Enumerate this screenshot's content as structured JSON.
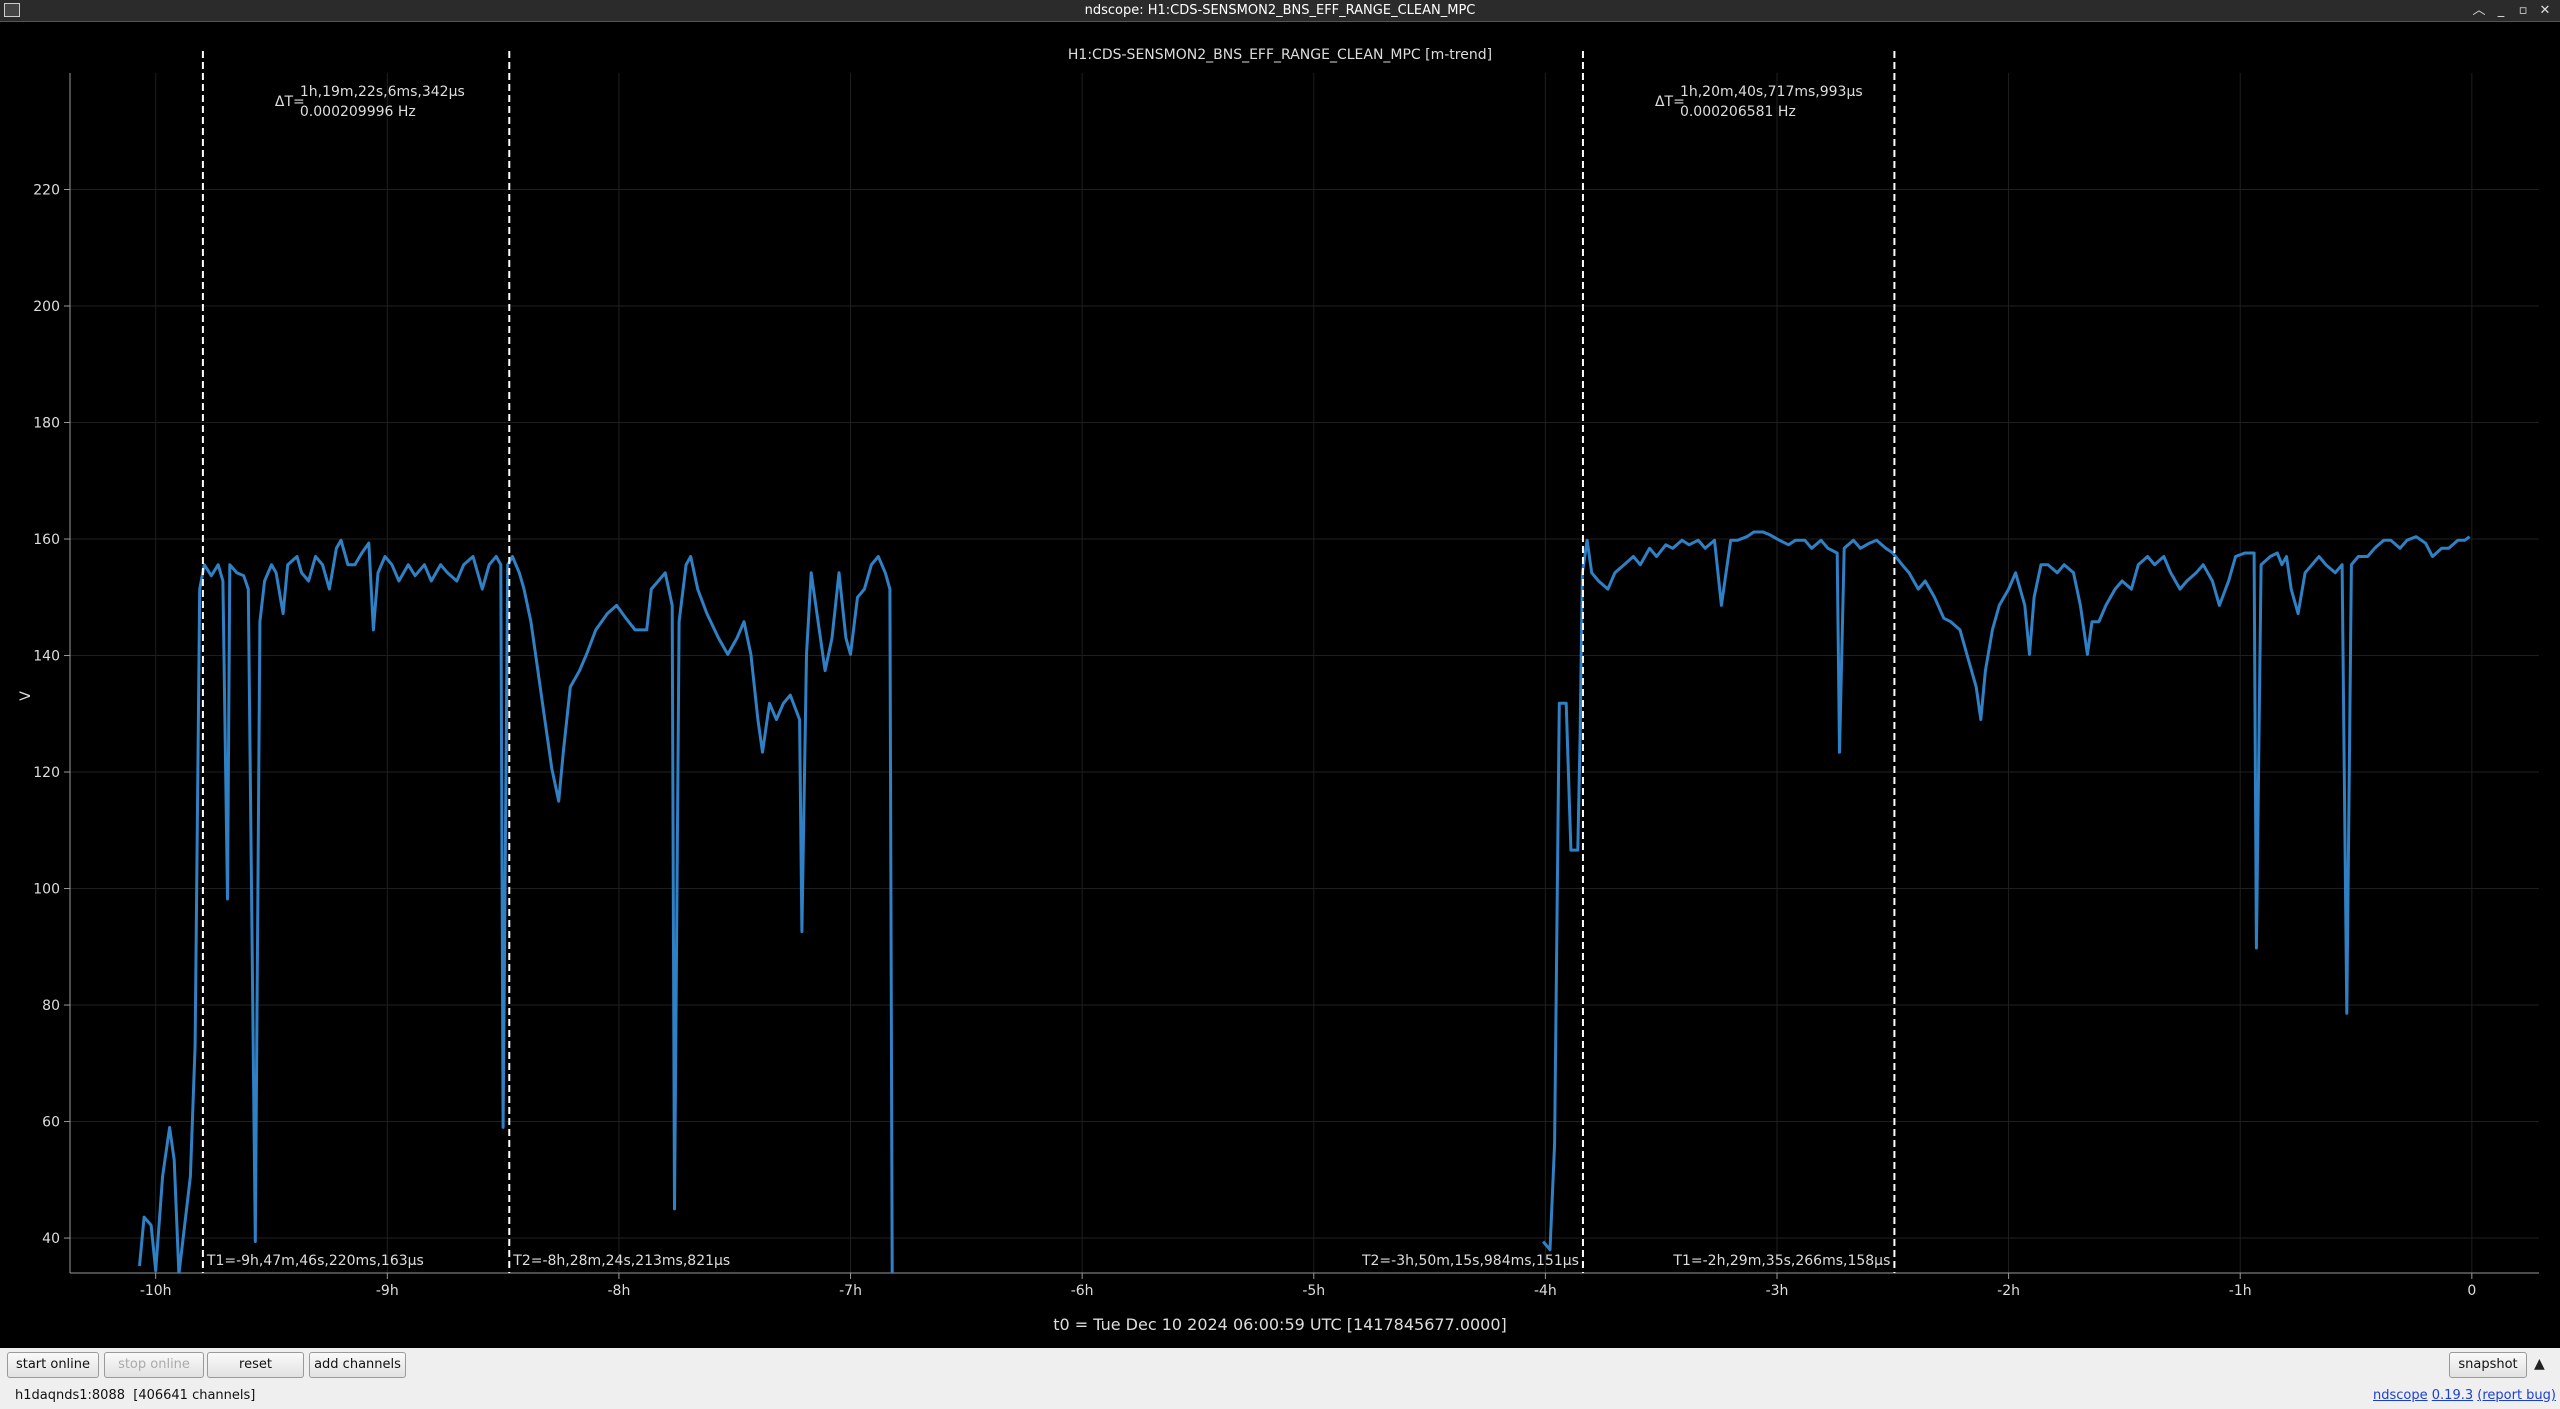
{
  "window": {
    "title": "ndscope: H1:CDS-SENSMON2_BNS_EFF_RANGE_CLEAN_MPC"
  },
  "chart_data": {
    "type": "line",
    "title": "H1:CDS-SENSMON2_BNS_EFF_RANGE_CLEAN_MPC [m-trend]",
    "y_label": "V",
    "x_caption": "t0 = Tue Dec 10 2024 06:00:59 UTC [1417845677.0000]",
    "color": "#2f80c4",
    "grid": true,
    "xlim": [
      -10.37,
      0.29
    ],
    "ylim": [
      34,
      240
    ],
    "xticks": [
      {
        "value": -10,
        "label": "-10h"
      },
      {
        "value": -9,
        "label": "-9h"
      },
      {
        "value": -8,
        "label": "-8h"
      },
      {
        "value": -7,
        "label": "-7h"
      },
      {
        "value": -6,
        "label": "-6h"
      },
      {
        "value": -5,
        "label": "-5h"
      },
      {
        "value": -4,
        "label": "-4h"
      },
      {
        "value": -3,
        "label": "-3h"
      },
      {
        "value": -2,
        "label": "-2h"
      },
      {
        "value": -1,
        "label": "-1h"
      },
      0
    ],
    "yticks": [
      40,
      60,
      80,
      100,
      120,
      140,
      160,
      180,
      200,
      220
    ],
    "x": [
      -10.07,
      -10.05,
      -10.02,
      -10.0,
      -9.97,
      -9.94,
      -9.92,
      -9.9,
      -9.85,
      -9.83,
      -9.81,
      -9.79,
      -9.76,
      -9.73,
      -9.71,
      -9.69,
      -9.68,
      -9.65,
      -9.62,
      -9.6,
      -9.57,
      -9.55,
      -9.53,
      -9.5,
      -9.48,
      -9.45,
      -9.43,
      -9.39,
      -9.37,
      -9.34,
      -9.31,
      -9.28,
      -9.25,
      -9.22,
      -9.2,
      -9.17,
      -9.14,
      -9.11,
      -9.08,
      -9.06,
      -9.04,
      -9.01,
      -8.98,
      -8.95,
      -8.91,
      -8.88,
      -8.84,
      -8.81,
      -8.77,
      -8.74,
      -8.7,
      -8.67,
      -8.63,
      -8.59,
      -8.56,
      -8.53,
      -8.51,
      -8.5,
      -8.48,
      -8.46,
      -8.43,
      -8.41,
      -8.38,
      -8.35,
      -8.32,
      -8.29,
      -8.26,
      -8.24,
      -8.21,
      -8.17,
      -8.14,
      -8.1,
      -8.05,
      -8.01,
      -7.97,
      -7.93,
      -7.88,
      -7.86,
      -7.83,
      -7.8,
      -7.77,
      -7.76,
      -7.74,
      -7.71,
      -7.69,
      -7.66,
      -7.62,
      -7.57,
      -7.53,
      -7.49,
      -7.46,
      -7.43,
      -7.4,
      -7.38,
      -7.35,
      -7.32,
      -7.29,
      -7.26,
      -7.22,
      -7.21,
      -7.19,
      -7.17,
      -7.14,
      -7.11,
      -7.08,
      -7.05,
      -7.02,
      -7.0,
      -6.97,
      -6.94,
      -6.91,
      -6.88,
      -6.85,
      -6.83,
      -6.82,
      -5.4,
      -4.01,
      -3.98,
      -3.96,
      -3.94,
      -3.91,
      -3.89,
      -3.86,
      -3.85,
      -3.84,
      -3.82,
      -3.8,
      -3.77,
      -3.73,
      -3.7,
      -3.66,
      -3.62,
      -3.59,
      -3.55,
      -3.52,
      -3.48,
      -3.45,
      -3.41,
      -3.38,
      -3.34,
      -3.31,
      -3.27,
      -3.24,
      -3.2,
      -3.17,
      -3.13,
      -3.1,
      -3.06,
      -3.03,
      -2.99,
      -2.95,
      -2.92,
      -2.88,
      -2.85,
      -2.81,
      -2.78,
      -2.74,
      -2.73,
      -2.71,
      -2.67,
      -2.64,
      -2.6,
      -2.57,
      -2.53,
      -2.5,
      -2.46,
      -2.43,
      -2.39,
      -2.36,
      -2.32,
      -2.28,
      -2.25,
      -2.21,
      -2.18,
      -2.14,
      -2.12,
      -2.1,
      -2.07,
      -2.04,
      -2.0,
      -1.97,
      -1.93,
      -1.91,
      -1.89,
      -1.86,
      -1.83,
      -1.79,
      -1.76,
      -1.72,
      -1.69,
      -1.66,
      -1.64,
      -1.61,
      -1.58,
      -1.54,
      -1.51,
      -1.47,
      -1.44,
      -1.4,
      -1.37,
      -1.33,
      -1.3,
      -1.26,
      -1.23,
      -1.19,
      -1.16,
      -1.12,
      -1.09,
      -1.05,
      -1.02,
      -0.98,
      -0.94,
      -0.93,
      -0.91,
      -0.87,
      -0.84,
      -0.82,
      -0.8,
      -0.78,
      -0.75,
      -0.72,
      -0.69,
      -0.66,
      -0.63,
      -0.59,
      -0.56,
      -0.54,
      -0.52,
      -0.49,
      -0.45,
      -0.42,
      -0.38,
      -0.35,
      -0.31,
      -0.28,
      -0.24,
      -0.2,
      -0.17,
      -0.13,
      -0.1,
      -0.06,
      -0.03,
      -0.01
    ],
    "values": [
      35.2,
      43.6,
      42.2,
      34.4,
      50.6,
      59.0,
      53.4,
      33.8,
      50.6,
      73.0,
      151.4,
      155.6,
      153.7,
      155.6,
      152.8,
      98.2,
      155.6,
      154.2,
      153.7,
      151.4,
      39.4,
      145.8,
      152.8,
      155.6,
      154.2,
      147.2,
      155.6,
      157.0,
      154.2,
      152.8,
      157.0,
      155.6,
      151.4,
      158.4,
      159.8,
      155.6,
      155.6,
      157.6,
      159.3,
      144.4,
      154.2,
      157.0,
      155.6,
      152.8,
      155.6,
      153.7,
      155.6,
      152.8,
      155.6,
      154.2,
      152.8,
      155.6,
      157.0,
      151.4,
      155.6,
      157.0,
      155.6,
      59.0,
      155.6,
      157.0,
      154.2,
      151.4,
      145.8,
      137.4,
      129.0,
      120.6,
      115.0,
      123.4,
      134.6,
      137.4,
      140.2,
      144.4,
      147.2,
      148.6,
      146.4,
      144.4,
      144.4,
      151.4,
      152.8,
      154.2,
      148.6,
      45.0,
      145.8,
      155.6,
      157.0,
      151.4,
      147.2,
      143.0,
      140.2,
      143.0,
      145.8,
      140.2,
      129.0,
      123.4,
      131.8,
      129.0,
      131.8,
      133.2,
      129.0,
      92.6,
      140.2,
      154.2,
      145.8,
      137.4,
      143.0,
      154.2,
      143.0,
      140.2,
      150.0,
      151.4,
      155.6,
      157.0,
      154.2,
      151.4,
      33.8,
      null,
      39.4,
      38.0,
      56.2,
      131.8,
      131.8,
      106.6,
      106.6,
      126.2,
      154.2,
      159.8,
      154.2,
      152.8,
      151.4,
      154.2,
      155.6,
      157.0,
      155.6,
      158.4,
      157.0,
      159.0,
      158.4,
      159.8,
      159.0,
      159.8,
      158.4,
      159.8,
      148.6,
      159.8,
      159.8,
      160.4,
      161.2,
      161.2,
      160.7,
      159.8,
      159.0,
      159.8,
      159.8,
      158.4,
      159.8,
      158.4,
      157.6,
      123.4,
      158.4,
      159.8,
      158.4,
      159.3,
      159.8,
      158.4,
      157.6,
      155.6,
      154.2,
      151.4,
      152.8,
      150.0,
      146.4,
      145.8,
      144.4,
      140.2,
      134.6,
      129.0,
      137.4,
      144.4,
      148.6,
      151.4,
      154.2,
      148.6,
      140.2,
      150.0,
      155.6,
      155.6,
      154.2,
      155.6,
      154.2,
      148.6,
      140.2,
      145.8,
      145.8,
      148.6,
      151.4,
      152.8,
      151.4,
      155.6,
      157.0,
      155.6,
      157.0,
      154.2,
      151.4,
      152.8,
      154.2,
      155.6,
      152.8,
      148.6,
      152.8,
      157.0,
      157.6,
      157.6,
      89.8,
      155.6,
      157.0,
      157.6,
      155.6,
      157.0,
      151.4,
      147.2,
      154.2,
      155.6,
      157.0,
      155.6,
      154.2,
      155.6,
      78.6,
      155.6,
      157.0,
      157.0,
      158.4,
      159.8,
      159.8,
      158.4,
      159.8,
      160.4,
      159.3,
      157.0,
      158.4,
      158.4,
      159.8,
      159.8,
      160.4
    ],
    "cursors": [
      {
        "x": -9.7962,
        "label": "T1=-9h,47m,46s,220ms,163μs"
      },
      {
        "x": -8.4734,
        "label": "T2=-8h,28m,24s,213ms,821μs"
      },
      {
        "x": -3.8378,
        "label": "T2=-3h,50m,15s,984ms,151μs"
      },
      {
        "x": -2.4931,
        "label": "T1=-2h,29m,35s,266ms,158μs"
      }
    ],
    "deltas": [
      {
        "label": "ΔT=",
        "duration": "1h,19m,22s,6ms,342μs",
        "frequency": "0.000209996 Hz"
      },
      {
        "label": "ΔT=",
        "duration": "1h,20m,40s,717ms,993μs",
        "frequency": "0.000206581 Hz"
      }
    ]
  },
  "toolbar": {
    "buttons": [
      "start online",
      "stop online",
      "reset",
      "add channels"
    ],
    "snapshot": "snapshot"
  },
  "status": {
    "server": "h1daqnds1:8088  [406641 channels]",
    "app": "ndscope",
    "version": "0.19.3",
    "report": "(report bug)"
  }
}
